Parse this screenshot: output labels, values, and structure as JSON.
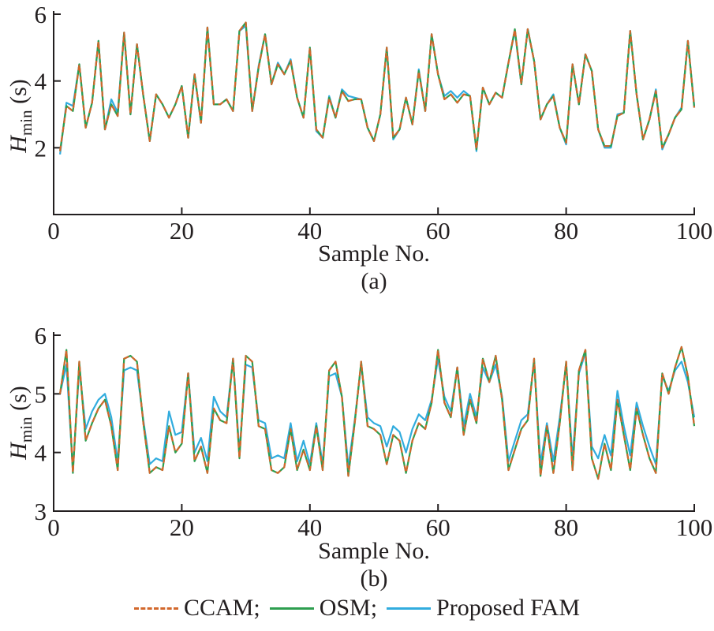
{
  "figure": {
    "ylabel": {
      "main": "H",
      "sub": "min",
      "unit": " (s)"
    },
    "colors": {
      "ccam": "#D2682C",
      "osm": "#2E9E4F",
      "fam": "#31ACDE",
      "axis": "#231F20"
    },
    "legend": [
      {
        "label": "CCAM;",
        "style": "dashed",
        "color": "#D2682C"
      },
      {
        "label": "OSM;",
        "style": "solid",
        "color": "#2E9E4F"
      },
      {
        "label": "Proposed FAM",
        "style": "solid",
        "color": "#31ACDE"
      }
    ]
  },
  "chart_data": [
    {
      "type": "line",
      "panel_label": "(a)",
      "xlabel": "Sample No.",
      "ylabel": "H_min (s)",
      "xlim": [
        0,
        100
      ],
      "ylim": [
        0,
        6
      ],
      "xticks": [
        0,
        20,
        40,
        60,
        80,
        100
      ],
      "yticks": [
        2,
        4,
        6
      ],
      "grid": false,
      "x_range": [
        1,
        100
      ],
      "legend_position": "below figure",
      "series": [
        {
          "name": "CCAM",
          "color": "#D2682C",
          "dash": true,
          "values": [
            1.9,
            3.25,
            3.1,
            4.5,
            2.6,
            3.35,
            5.2,
            2.55,
            3.3,
            2.95,
            5.45,
            3.0,
            5.1,
            3.55,
            2.2,
            3.6,
            3.3,
            2.9,
            3.3,
            3.85,
            2.3,
            4.2,
            2.75,
            5.6,
            3.3,
            3.3,
            3.45,
            3.1,
            5.5,
            5.75,
            3.1,
            4.4,
            5.4,
            3.9,
            4.5,
            4.2,
            4.6,
            3.5,
            2.9,
            5.0,
            2.55,
            2.3,
            3.5,
            2.9,
            3.7,
            3.4,
            3.45,
            3.45,
            2.6,
            2.2,
            3.0,
            5.0,
            2.3,
            2.55,
            3.5,
            2.7,
            4.3,
            3.1,
            5.4,
            4.2,
            3.45,
            3.6,
            3.35,
            3.6,
            3.55,
            1.95,
            3.8,
            3.3,
            3.65,
            3.5,
            4.55,
            5.55,
            3.9,
            5.55,
            4.6,
            2.85,
            3.3,
            3.55,
            2.6,
            2.15,
            4.5,
            3.3,
            4.8,
            4.3,
            2.55,
            2.05,
            2.05,
            2.95,
            3.05,
            5.5,
            3.6,
            2.25,
            2.85,
            3.7,
            2.0,
            2.4,
            2.9,
            3.15,
            5.2,
            3.2
          ]
        },
        {
          "name": "OSM",
          "color": "#2E9E4F",
          "dash": false,
          "values": [
            1.9,
            3.25,
            3.1,
            4.5,
            2.6,
            3.35,
            5.2,
            2.55,
            3.3,
            2.95,
            5.45,
            3.0,
            5.1,
            3.55,
            2.2,
            3.6,
            3.3,
            2.9,
            3.3,
            3.85,
            2.3,
            4.2,
            2.75,
            5.6,
            3.3,
            3.3,
            3.45,
            3.1,
            5.5,
            5.75,
            3.1,
            4.4,
            5.4,
            3.9,
            4.5,
            4.2,
            4.6,
            3.5,
            2.9,
            5.0,
            2.55,
            2.3,
            3.5,
            2.9,
            3.7,
            3.4,
            3.45,
            3.45,
            2.6,
            2.2,
            3.0,
            5.0,
            2.3,
            2.55,
            3.5,
            2.7,
            4.3,
            3.1,
            5.4,
            4.2,
            3.45,
            3.6,
            3.35,
            3.6,
            3.55,
            1.95,
            3.8,
            3.3,
            3.65,
            3.5,
            4.55,
            5.55,
            3.9,
            5.55,
            4.6,
            2.85,
            3.3,
            3.55,
            2.6,
            2.15,
            4.5,
            3.3,
            4.8,
            4.3,
            2.55,
            2.05,
            2.05,
            2.95,
            3.05,
            5.5,
            3.6,
            2.25,
            2.85,
            3.7,
            2.0,
            2.4,
            2.9,
            3.15,
            5.2,
            3.2
          ]
        },
        {
          "name": "Proposed FAM",
          "color": "#31ACDE",
          "dash": false,
          "values": [
            1.8,
            3.35,
            3.25,
            4.5,
            2.6,
            3.35,
            5.2,
            2.55,
            3.45,
            3.05,
            5.45,
            3.0,
            5.1,
            3.55,
            2.2,
            3.6,
            3.3,
            2.9,
            3.3,
            3.85,
            2.3,
            4.2,
            2.75,
            5.6,
            3.3,
            3.3,
            3.45,
            3.1,
            5.5,
            5.65,
            3.1,
            4.45,
            5.4,
            3.9,
            4.55,
            4.2,
            4.65,
            3.5,
            2.9,
            5.0,
            2.5,
            2.3,
            3.55,
            2.9,
            3.75,
            3.55,
            3.5,
            3.45,
            2.6,
            2.2,
            3.0,
            5.0,
            2.25,
            2.55,
            3.5,
            2.7,
            4.35,
            3.1,
            5.4,
            4.2,
            3.55,
            3.7,
            3.5,
            3.7,
            3.55,
            1.9,
            3.8,
            3.3,
            3.65,
            3.5,
            4.55,
            5.5,
            3.9,
            5.55,
            4.6,
            2.85,
            3.3,
            3.6,
            2.6,
            2.1,
            4.5,
            3.3,
            4.8,
            4.3,
            2.55,
            2.0,
            2.0,
            3.0,
            3.05,
            5.5,
            3.6,
            2.25,
            2.85,
            3.75,
            1.95,
            2.4,
            2.9,
            3.2,
            5.2,
            3.25
          ]
        }
      ]
    },
    {
      "type": "line",
      "panel_label": "(b)",
      "xlabel": "Sample No.",
      "ylabel": "H_min (s)",
      "xlim": [
        0,
        100
      ],
      "ylim": [
        3,
        6
      ],
      "xticks": [
        0,
        20,
        40,
        60,
        80,
        100
      ],
      "yticks": [
        3,
        4,
        5,
        6
      ],
      "grid": false,
      "x_range": [
        1,
        100
      ],
      "legend_position": "below figure",
      "series": [
        {
          "name": "CCAM",
          "color": "#D2682C",
          "dash": true,
          "values": [
            5.0,
            5.75,
            3.65,
            5.55,
            4.2,
            4.5,
            4.75,
            4.9,
            4.45,
            3.7,
            5.6,
            5.65,
            5.55,
            4.5,
            3.65,
            3.75,
            3.7,
            4.45,
            4.0,
            4.15,
            5.35,
            3.85,
            4.1,
            3.65,
            4.75,
            4.55,
            4.5,
            5.6,
            3.9,
            5.65,
            5.55,
            4.45,
            4.4,
            3.7,
            3.65,
            3.75,
            4.4,
            3.7,
            4.05,
            3.7,
            4.45,
            3.7,
            5.4,
            5.55,
            4.95,
            3.6,
            4.5,
            5.55,
            4.45,
            4.4,
            4.3,
            3.8,
            4.3,
            4.2,
            3.65,
            4.2,
            4.5,
            4.4,
            4.85,
            5.75,
            4.85,
            4.6,
            5.45,
            4.3,
            4.9,
            4.5,
            5.6,
            5.2,
            5.65,
            4.9,
            3.7,
            4.05,
            4.4,
            4.55,
            5.6,
            3.6,
            4.45,
            3.65,
            4.5,
            5.55,
            3.7,
            5.4,
            5.75,
            3.9,
            3.55,
            4.15,
            3.7,
            4.9,
            4.3,
            3.7,
            4.75,
            4.3,
            3.9,
            3.65,
            5.35,
            5.0,
            5.45,
            5.8,
            5.3,
            4.45
          ]
        },
        {
          "name": "OSM",
          "color": "#2E9E4F",
          "dash": false,
          "values": [
            5.0,
            5.75,
            3.65,
            5.55,
            4.2,
            4.5,
            4.75,
            4.9,
            4.45,
            3.7,
            5.6,
            5.65,
            5.55,
            4.5,
            3.65,
            3.75,
            3.7,
            4.45,
            4.0,
            4.15,
            5.35,
            3.85,
            4.1,
            3.65,
            4.75,
            4.55,
            4.5,
            5.6,
            3.9,
            5.65,
            5.55,
            4.45,
            4.4,
            3.7,
            3.65,
            3.75,
            4.4,
            3.7,
            4.05,
            3.7,
            4.45,
            3.7,
            5.4,
            5.55,
            4.95,
            3.6,
            4.5,
            5.55,
            4.45,
            4.4,
            4.3,
            3.8,
            4.3,
            4.2,
            3.65,
            4.2,
            4.5,
            4.4,
            4.85,
            5.75,
            4.85,
            4.6,
            5.45,
            4.3,
            4.9,
            4.5,
            5.6,
            5.2,
            5.65,
            4.9,
            3.7,
            4.05,
            4.4,
            4.55,
            5.6,
            3.6,
            4.45,
            3.65,
            4.5,
            5.55,
            3.7,
            5.4,
            5.75,
            3.9,
            3.55,
            4.15,
            3.7,
            4.9,
            4.3,
            3.7,
            4.75,
            4.3,
            3.9,
            3.65,
            5.35,
            5.0,
            5.45,
            5.8,
            5.3,
            4.45
          ]
        },
        {
          "name": "Proposed FAM",
          "color": "#31ACDE",
          "dash": false,
          "values": [
            5.0,
            5.5,
            3.7,
            5.45,
            4.4,
            4.7,
            4.9,
            5.0,
            4.6,
            3.85,
            5.4,
            5.45,
            5.4,
            4.55,
            3.8,
            3.9,
            3.85,
            4.7,
            4.3,
            4.35,
            5.35,
            4.0,
            4.25,
            3.85,
            4.95,
            4.7,
            4.6,
            5.6,
            4.0,
            5.5,
            5.45,
            4.55,
            4.5,
            3.9,
            3.95,
            3.9,
            4.5,
            3.85,
            4.2,
            3.8,
            4.5,
            3.8,
            5.3,
            5.35,
            4.95,
            3.75,
            4.55,
            5.5,
            4.6,
            4.5,
            4.45,
            4.1,
            4.45,
            4.35,
            4.0,
            4.4,
            4.65,
            4.55,
            4.9,
            5.6,
            4.95,
            4.7,
            5.45,
            4.45,
            5.0,
            4.6,
            5.45,
            5.2,
            5.5,
            4.95,
            3.85,
            4.2,
            4.55,
            4.65,
            5.55,
            3.8,
            4.5,
            3.85,
            4.6,
            5.5,
            3.9,
            5.35,
            5.7,
            4.1,
            3.9,
            4.3,
            3.95,
            5.05,
            4.45,
            3.95,
            4.85,
            4.45,
            4.1,
            3.8,
            5.3,
            5.05,
            5.4,
            5.55,
            5.2,
            4.6
          ]
        }
      ]
    }
  ]
}
